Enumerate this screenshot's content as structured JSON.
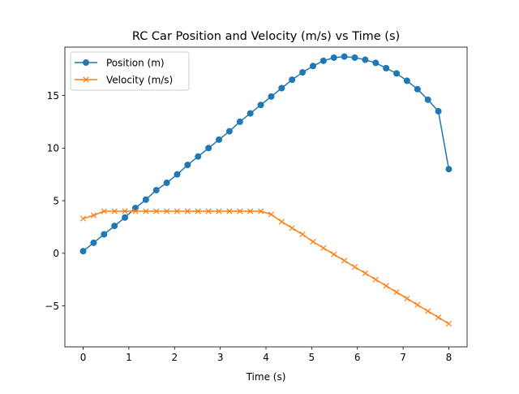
{
  "chart_data": {
    "type": "line",
    "title": "RC Car Position and Velocity (m/s) vs Time (s)",
    "xlabel": "Time (s)",
    "ylabel": "",
    "xlim": [
      -0.4,
      8.4
    ],
    "ylim": [
      -8.9,
      19.6
    ],
    "xticks": [
      0,
      1,
      2,
      3,
      4,
      5,
      6,
      7,
      8
    ],
    "xtick_labels": [
      "0",
      "1",
      "2",
      "3",
      "4",
      "5",
      "6",
      "7",
      "8"
    ],
    "yticks": [
      -5,
      0,
      5,
      10,
      15
    ],
    "ytick_labels": [
      "−5",
      "0",
      "5",
      "10",
      "15"
    ],
    "grid": false,
    "legend_position": "top-left",
    "series": [
      {
        "name": "Position (m)",
        "color": "#1f77b4",
        "marker": "circle",
        "x": [
          0,
          0.2286,
          0.4571,
          0.6857,
          0.9143,
          1.1429,
          1.3714,
          1.6,
          1.8286,
          2.0571,
          2.2857,
          2.5143,
          2.7429,
          2.9714,
          3.2,
          3.4286,
          3.6571,
          3.8857,
          4.1143,
          4.3429,
          4.5714,
          4.8,
          5.0286,
          5.2571,
          5.4857,
          5.7143,
          5.9429,
          6.1714,
          6.4,
          6.6286,
          6.8571,
          7.0857,
          7.3143,
          7.5429,
          7.7714,
          8
        ],
        "y": [
          0.2,
          1.0,
          1.8,
          2.6,
          3.4,
          4.3,
          5.1,
          6.0,
          6.7,
          7.5,
          8.4,
          9.2,
          10.0,
          10.8,
          11.6,
          12.5,
          13.3,
          14.1,
          14.9,
          15.7,
          16.5,
          17.2,
          17.8,
          18.3,
          18.6,
          18.7,
          18.6,
          18.4,
          18.1,
          17.6,
          17.1,
          16.4,
          15.6,
          14.6,
          13.5,
          8.0
        ]
      },
      {
        "name": "Velocity (m/s)",
        "color": "#ff7f0e",
        "marker": "x",
        "x": [
          0,
          0.2286,
          0.4571,
          0.6857,
          0.9143,
          1.1429,
          1.3714,
          1.6,
          1.8286,
          2.0571,
          2.2857,
          2.5143,
          2.7429,
          2.9714,
          3.2,
          3.4286,
          3.6571,
          3.8857,
          4.1143,
          4.3429,
          4.5714,
          4.8,
          5.0286,
          5.2571,
          5.4857,
          5.7143,
          5.9429,
          6.1714,
          6.4,
          6.6286,
          6.8571,
          7.0857,
          7.3143,
          7.5429,
          7.7714,
          8
        ],
        "y": [
          3.3,
          3.6,
          4.0,
          4.0,
          4.0,
          4.0,
          4.0,
          4.0,
          4.0,
          4.0,
          4.0,
          4.0,
          4.0,
          4.0,
          4.0,
          4.0,
          4.0,
          4.0,
          3.7,
          3.0,
          2.4,
          1.8,
          1.1,
          0.5,
          -0.1,
          -0.7,
          -1.3,
          -1.9,
          -2.5,
          -3.1,
          -3.7,
          -4.3,
          -4.9,
          -5.5,
          -6.1,
          -6.7
        ]
      }
    ]
  }
}
